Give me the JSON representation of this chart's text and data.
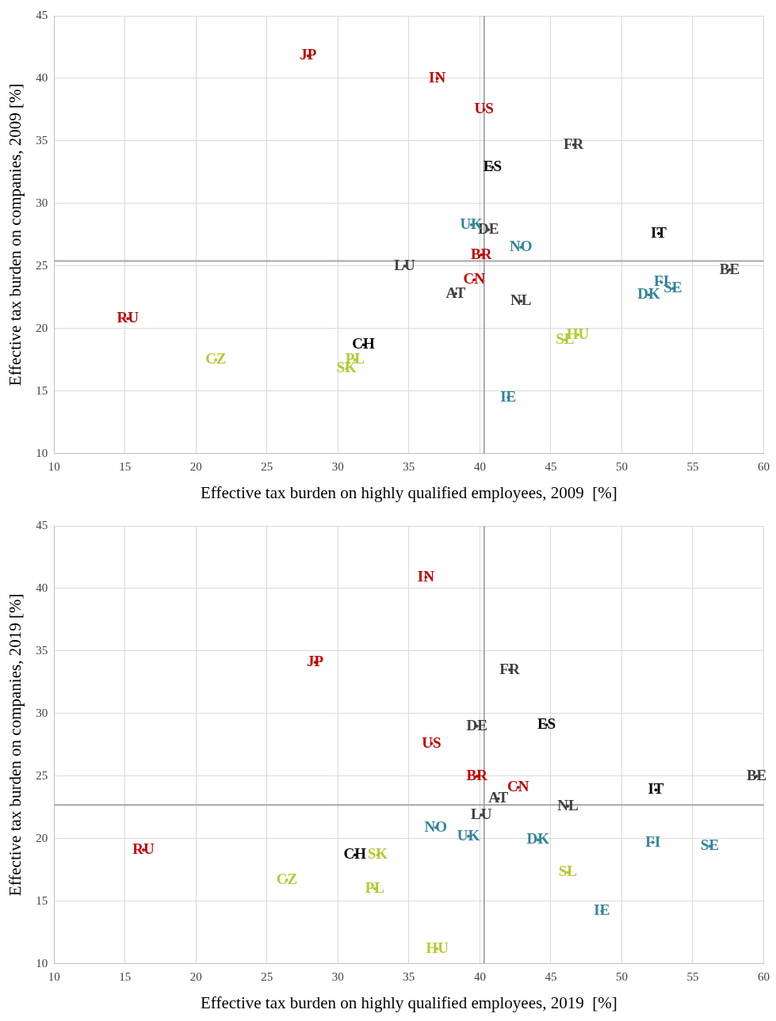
{
  "chart_data": [
    {
      "type": "scatter",
      "xlabel": "Effective tax burden on highly qualified employees, 2009  [%]",
      "ylabel": "Effective tax burden on companies, 2009 [%]",
      "xlim": [
        10,
        60
      ],
      "xticks": [
        10,
        15,
        20,
        25,
        30,
        35,
        40,
        45,
        50,
        55,
        60
      ],
      "ylim": [
        10,
        45
      ],
      "yticks": [
        10,
        15,
        20,
        25,
        30,
        35,
        40,
        45
      ],
      "grid": true,
      "legend": false,
      "ref_lines": [
        {
          "axis": "x",
          "value": 40.3,
          "color": "#a6a6a6"
        },
        {
          "axis": "y",
          "value": 25.4,
          "color": "#a6a6a6"
        }
      ],
      "series": [
        {
          "color": "#c00000",
          "x": [
            27.9,
            37.0,
            40.3,
            40.1,
            39.6,
            15.2
          ],
          "values": [
            41.8,
            40.0,
            37.5,
            25.9,
            23.9,
            20.8
          ],
          "value_labels": [
            "JP",
            "IN",
            "US",
            "BR",
            "CN",
            "RU"
          ]
        },
        {
          "color": "#404040",
          "x": [
            46.6,
            40.6,
            34.7,
            57.6,
            38.3,
            42.9
          ],
          "values": [
            34.7,
            27.9,
            25.0,
            24.7,
            22.8,
            22.2
          ],
          "value_labels": [
            "FR",
            "DE",
            "LU",
            "BE",
            "AT",
            "NL"
          ]
        },
        {
          "color": "#000000",
          "x": [
            40.9,
            52.6,
            31.8
          ],
          "values": [
            32.9,
            27.6,
            18.7
          ],
          "value_labels": [
            "ES",
            "IT",
            "CH"
          ]
        },
        {
          "color": "#31859c",
          "x": [
            39.4,
            42.9,
            52.8,
            53.6,
            51.9,
            42.0
          ],
          "values": [
            28.3,
            26.5,
            23.7,
            23.2,
            22.7,
            14.5
          ],
          "value_labels": [
            "UK",
            "NO",
            "FI",
            "SE",
            "DK",
            "IE"
          ]
        },
        {
          "color": "#b5c934",
          "x": [
            46.0,
            46.9,
            21.4,
            31.2,
            30.6
          ],
          "values": [
            19.1,
            19.5,
            17.5,
            17.5,
            16.8
          ],
          "value_labels": [
            "SL",
            "HU",
            "CZ",
            "PL",
            "SK"
          ]
        }
      ]
    },
    {
      "type": "scatter",
      "xlabel": "Effective tax burden on highly qualified employees, 2019  [%]",
      "ylabel": "Effective tax burden on companies, 2019 [%]",
      "xlim": [
        10,
        60
      ],
      "xticks": [
        10,
        15,
        20,
        25,
        30,
        35,
        40,
        45,
        50,
        55,
        60
      ],
      "ylim": [
        10,
        45
      ],
      "yticks": [
        10,
        15,
        20,
        25,
        30,
        35,
        40,
        45
      ],
      "grid": true,
      "legend": false,
      "ref_lines": [
        {
          "axis": "x",
          "value": 40.3,
          "color": "#a6a6a6"
        },
        {
          "axis": "y",
          "value": 22.7,
          "color": "#a6a6a6"
        }
      ],
      "series": [
        {
          "color": "#c00000",
          "x": [
            36.2,
            28.4,
            36.6,
            39.8,
            42.7,
            16.3
          ],
          "values": [
            40.9,
            34.1,
            27.6,
            25.0,
            24.1,
            19.1
          ],
          "value_labels": [
            "IN",
            "JP",
            "US",
            "BR",
            "CN",
            "RU"
          ]
        },
        {
          "color": "#404040",
          "x": [
            42.1,
            39.8,
            59.5,
            41.3,
            46.2,
            40.1
          ],
          "values": [
            33.5,
            29.0,
            25.0,
            23.2,
            22.6,
            21.9
          ],
          "value_labels": [
            "FR",
            "DE",
            "BE",
            "AT",
            "NL",
            "LU"
          ]
        },
        {
          "color": "#000000",
          "x": [
            44.7,
            52.4,
            31.2
          ],
          "values": [
            29.1,
            23.9,
            18.7
          ],
          "value_labels": [
            "ES",
            "IT",
            "CH"
          ]
        },
        {
          "color": "#31859c",
          "x": [
            36.9,
            39.2,
            44.1,
            52.2,
            56.2,
            48.6
          ],
          "values": [
            20.9,
            20.2,
            19.9,
            19.7,
            19.4,
            14.2
          ],
          "value_labels": [
            "NO",
            "UK",
            "DK",
            "FI",
            "SE",
            "IE"
          ]
        },
        {
          "color": "#b5c934",
          "x": [
            32.8,
            26.4,
            46.2,
            32.6,
            37.0
          ],
          "values": [
            18.7,
            16.7,
            17.3,
            16.0,
            11.2
          ],
          "value_labels": [
            "SK",
            "CZ",
            "SL",
            "PL",
            "HU"
          ]
        }
      ]
    }
  ]
}
